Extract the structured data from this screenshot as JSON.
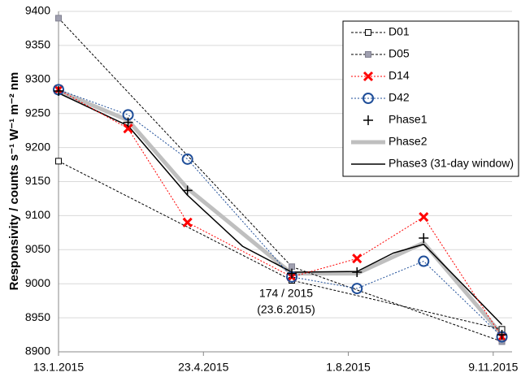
{
  "chart_data": {
    "type": "line",
    "ylabel": "Responsivity / counts s⁻¹ W⁻¹ m⁻² nm",
    "annotations": [
      "174 / 2015",
      "(23.6.2015)"
    ],
    "xlim": [
      "2015-01-13",
      "2015-11-22"
    ],
    "xticks": [
      {
        "value": "2015-01-13",
        "label": "13.1.2015"
      },
      {
        "value": "2015-04-23",
        "label": "23.4.2015"
      },
      {
        "value": "2015-08-01",
        "label": "1.8.2015"
      },
      {
        "value": "2015-11-09",
        "label": "9.11.2015"
      }
    ],
    "ylim": [
      8900,
      9400
    ],
    "yticks": [
      8900,
      8950,
      9000,
      9050,
      9100,
      9150,
      9200,
      9250,
      9300,
      9350,
      9400
    ],
    "grid": true,
    "legend": "upper right",
    "series": [
      {
        "name": "D01",
        "color": "#000000",
        "fill": "#ffffff",
        "marker": "square",
        "dash": "3,2",
        "width": 1,
        "x": [
          "2015-01-13",
          "2015-06-23",
          "2015-11-15"
        ],
        "values": [
          9180,
          9005,
          8933
        ]
      },
      {
        "name": "D05",
        "color": "#000000",
        "fill": "#a0a0b0",
        "marker": "square",
        "dash": "3,2",
        "width": 1,
        "x": [
          "2015-01-13",
          "2015-06-23",
          "2015-11-15"
        ],
        "values": [
          9390,
          9025,
          8915
        ]
      },
      {
        "name": "D14",
        "color": "#ff0000",
        "fill": "none",
        "marker": "x",
        "dash": "2,2",
        "width": 1,
        "x": [
          "2015-01-13",
          "2015-03-02",
          "2015-04-12",
          "2015-06-23",
          "2015-08-07",
          "2015-09-22",
          "2015-11-15"
        ],
        "values": [
          9285,
          9228,
          9090,
          9010,
          9037,
          9098,
          8922
        ]
      },
      {
        "name": "D42",
        "color": "#1f4e99",
        "fill": "none",
        "marker": "circle",
        "dash": "2,2",
        "width": 1,
        "x": [
          "2015-01-13",
          "2015-03-02",
          "2015-04-12",
          "2015-06-23",
          "2015-08-07",
          "2015-09-22",
          "2015-11-15"
        ],
        "values": [
          9285,
          9248,
          9183,
          9010,
          8993,
          9033,
          8922
        ]
      },
      {
        "name": "Phase1",
        "color": "#000000",
        "fill": "none",
        "marker": "plus",
        "dash": "",
        "width": 0,
        "x": [
          "2015-01-13",
          "2015-03-02",
          "2015-04-12",
          "2015-06-23",
          "2015-08-07",
          "2015-09-22",
          "2015-11-15"
        ],
        "values": [
          9283,
          9237,
          9137,
          9015,
          9017,
          9067,
          8925
        ]
      },
      {
        "name": "Phase2",
        "color": "#bfbfbf",
        "fill": "none",
        "marker": "none",
        "dash": "",
        "width": 5,
        "x": [
          "2015-01-13",
          "2015-03-02",
          "2015-04-12",
          "2015-06-23",
          "2015-08-07",
          "2015-09-22",
          "2015-11-15"
        ],
        "values": [
          9283,
          9240,
          9140,
          9015,
          9015,
          9060,
          8925
        ]
      },
      {
        "name": "Phase3 (31-day window)",
        "color": "#000000",
        "fill": "none",
        "marker": "none",
        "dash": "",
        "width": 1.5,
        "x": [
          "2015-01-13",
          "2015-03-02",
          "2015-04-12",
          "2015-05-20",
          "2015-06-23",
          "2015-08-07",
          "2015-09-01",
          "2015-09-22",
          "2015-11-15"
        ],
        "values": [
          9280,
          9232,
          9130,
          9055,
          9017,
          9018,
          9045,
          9058,
          8940
        ]
      }
    ]
  }
}
